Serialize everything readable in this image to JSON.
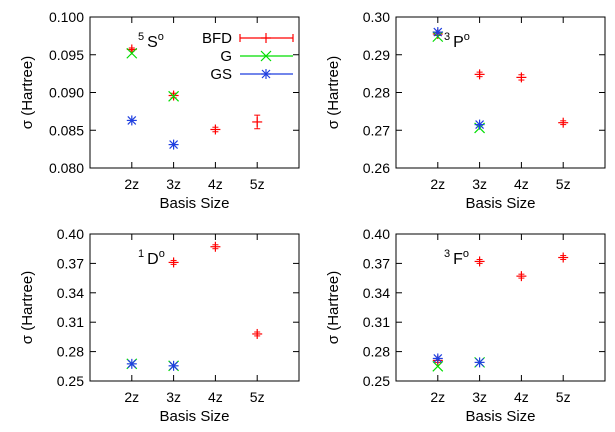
{
  "colors": {
    "BFD": "#ff0000",
    "G": "#00dd00",
    "GS": "#1f3fdf"
  },
  "legend": [
    "BFD",
    "G",
    "GS"
  ],
  "chart_data": [
    {
      "type": "scatter",
      "title": {
        "sup1": "5",
        "main": "S",
        "sup2": "o"
      },
      "xlabel": "Basis Size",
      "ylabel": "σ (Hartree)",
      "categories": [
        "2z",
        "3z",
        "4z",
        "5z"
      ],
      "ylim": [
        0.08,
        0.1
      ],
      "yticks": [
        "0.080",
        "0.085",
        "0.090",
        "0.095",
        "0.100"
      ],
      "series": [
        {
          "name": "BFD",
          "x": [
            "2z",
            "3z",
            "4z",
            "5z"
          ],
          "y": [
            0.0957,
            0.0896,
            0.0851,
            0.0861
          ],
          "err": [
            0.0002,
            0.0003,
            0.0003,
            0.0009
          ]
        },
        {
          "name": "G",
          "x": [
            "2z",
            "3z"
          ],
          "y": [
            0.0952,
            0.0895
          ]
        },
        {
          "name": "GS",
          "x": [
            "2z",
            "3z"
          ],
          "y": [
            0.0863,
            0.0831
          ]
        }
      ]
    },
    {
      "type": "scatter",
      "title": {
        "sup1": "3",
        "main": "P",
        "sup2": "o"
      },
      "xlabel": "Basis Size",
      "ylabel": "σ (Hartree)",
      "categories": [
        "2z",
        "3z",
        "4z",
        "5z"
      ],
      "ylim": [
        0.26,
        0.3
      ],
      "yticks": [
        "0.26",
        "0.27",
        "0.28",
        "0.29",
        "0.30"
      ],
      "series": [
        {
          "name": "BFD",
          "x": [
            "2z",
            "3z",
            "4z",
            "5z"
          ],
          "y": [
            0.2955,
            0.2848,
            0.284,
            0.272
          ],
          "err": [
            0.0004,
            0.0006,
            0.0007,
            0.0005
          ]
        },
        {
          "name": "G",
          "x": [
            "2z",
            "3z"
          ],
          "y": [
            0.2948,
            0.2706
          ]
        },
        {
          "name": "GS",
          "x": [
            "2z",
            "3z"
          ],
          "y": [
            0.296,
            0.2715
          ]
        }
      ]
    },
    {
      "type": "scatter",
      "title": {
        "sup1": "1",
        "main": "D",
        "sup2": "o"
      },
      "xlabel": "Basis Size",
      "ylabel": "σ (Hartree)",
      "categories": [
        "2z",
        "3z",
        "4z",
        "5z"
      ],
      "ylim": [
        0.25,
        0.4
      ],
      "yticks": [
        "0.25",
        "0.28",
        "0.31",
        "0.34",
        "0.37",
        "0.40"
      ],
      "series": [
        {
          "name": "BFD",
          "x": [
            "3z",
            "4z",
            "5z"
          ],
          "y": [
            0.371,
            0.387,
            0.298
          ],
          "err": [
            0.002,
            0.002,
            0.002
          ]
        },
        {
          "name": "G",
          "x": [
            "2z",
            "3z"
          ],
          "y": [
            0.2675,
            0.2655
          ]
        },
        {
          "name": "GS",
          "x": [
            "2z",
            "3z"
          ],
          "y": [
            0.2675,
            0.2655
          ]
        }
      ]
    },
    {
      "type": "scatter",
      "title": {
        "sup1": "3",
        "main": "F",
        "sup2": "o"
      },
      "xlabel": "Basis Size",
      "ylabel": "σ (Hartree)",
      "categories": [
        "2z",
        "3z",
        "4z",
        "5z"
      ],
      "ylim": [
        0.25,
        0.4
      ],
      "yticks": [
        "0.25",
        "0.28",
        "0.31",
        "0.34",
        "0.37",
        "0.40"
      ],
      "series": [
        {
          "name": "BFD",
          "x": [
            "2z",
            "3z",
            "4z",
            "5z"
          ],
          "y": [
            0.271,
            0.372,
            0.357,
            0.376
          ],
          "err": [
            0.002,
            0.002,
            0.002,
            0.002
          ]
        },
        {
          "name": "G",
          "x": [
            "2z",
            "3z"
          ],
          "y": [
            0.265,
            0.269
          ]
        },
        {
          "name": "GS",
          "x": [
            "2z",
            "3z"
          ],
          "y": [
            0.273,
            0.269
          ]
        }
      ]
    }
  ]
}
